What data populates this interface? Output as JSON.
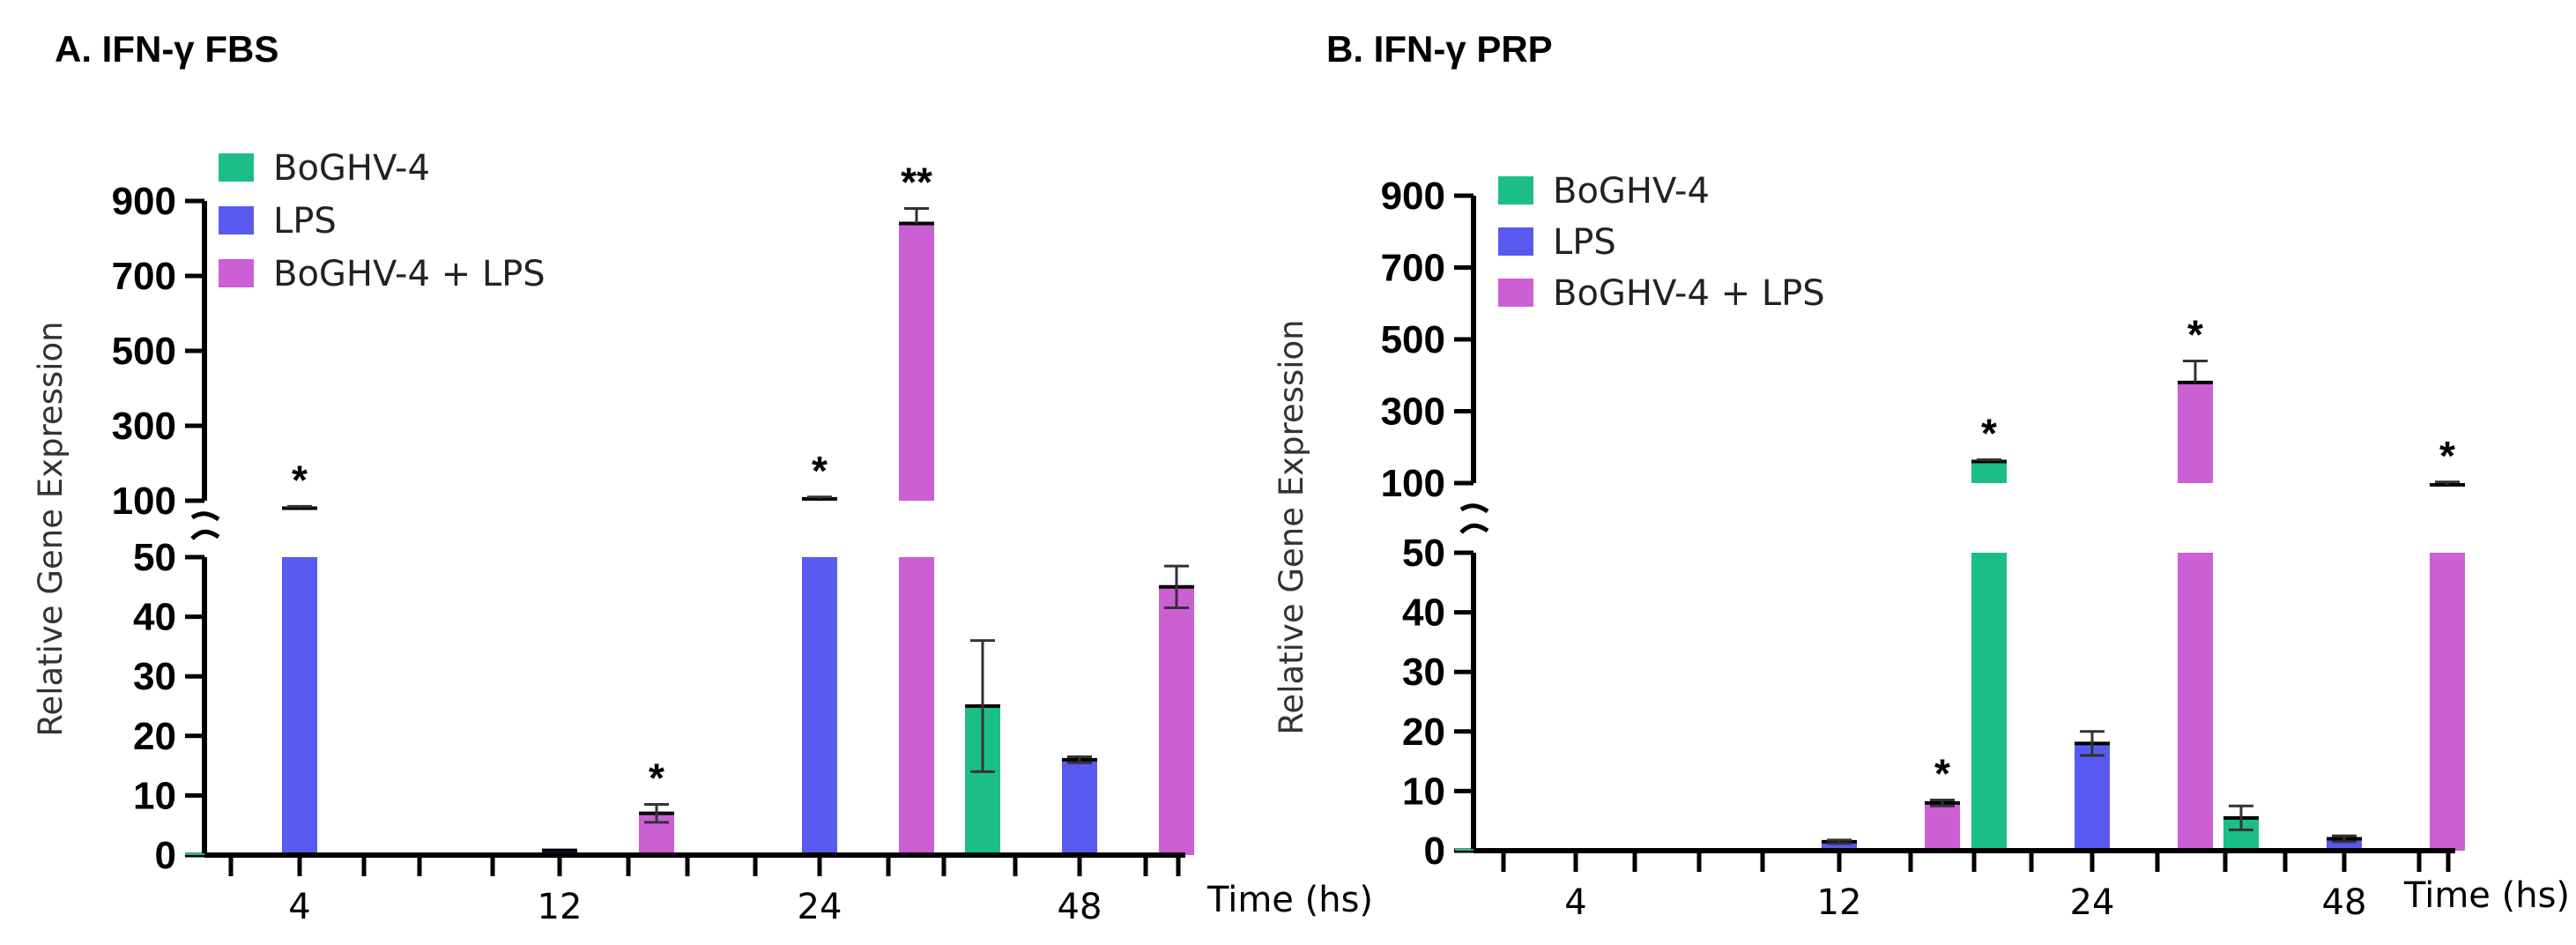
{
  "chart_data": [
    {
      "type": "bar",
      "title": "A. IFN-γ FBS",
      "xlabel": "Time (hs)",
      "ylabel": "Relative Gene Expression",
      "categories": [
        "4",
        "12",
        "24",
        "48"
      ],
      "y_axis": "broken",
      "ylim_lower": [
        0,
        50
      ],
      "ylim_upper": [
        100,
        900
      ],
      "yticks_lower": [
        "0",
        "10",
        "20",
        "30",
        "40",
        "50"
      ],
      "yticks_upper": [
        "100",
        "300",
        "500",
        "700",
        "900"
      ],
      "legend_position": "top-left",
      "series": [
        {
          "name": "BoGHV-4",
          "color": "#1bbf85",
          "values": [
            0,
            0.3,
            0,
            25
          ],
          "errors": [
            0,
            0,
            0,
            11
          ],
          "significance": [
            "",
            "",
            "",
            ""
          ]
        },
        {
          "name": "LPS",
          "color": "#5a5af0",
          "values": [
            80,
            0.8,
            105,
            16
          ],
          "errors": [
            5,
            0,
            5,
            0.5
          ],
          "significance": [
            "*",
            "",
            "*",
            ""
          ]
        },
        {
          "name": "BoGHV-4 + LPS",
          "color": "#cc5fd4",
          "values": [
            0.3,
            7,
            840,
            45
          ],
          "errors": [
            0,
            1.5,
            40,
            3.5
          ],
          "significance": [
            "",
            "*",
            "**",
            ""
          ]
        }
      ]
    },
    {
      "type": "bar",
      "title": "B. IFN-γ PRP",
      "xlabel": "Time (hs)",
      "ylabel": "Relative Gene Expression",
      "categories": [
        "4",
        "12",
        "24",
        "48"
      ],
      "y_axis": "broken",
      "ylim_lower": [
        0,
        50
      ],
      "ylim_upper": [
        100,
        900
      ],
      "yticks_lower": [
        "0",
        "10",
        "20",
        "30",
        "40",
        "50"
      ],
      "yticks_upper": [
        "100",
        "300",
        "500",
        "700",
        "900"
      ],
      "legend_position": "top-left",
      "series": [
        {
          "name": "BoGHV-4",
          "color": "#1bbf85",
          "values": [
            0.2,
            0.3,
            160,
            5.5
          ],
          "errors": [
            0,
            0,
            5,
            2
          ],
          "significance": [
            "",
            "",
            "*",
            ""
          ]
        },
        {
          "name": "LPS",
          "color": "#5a5af0",
          "values": [
            0.2,
            1.5,
            18,
            2
          ],
          "errors": [
            0,
            0.3,
            2,
            0.5
          ],
          "significance": [
            "",
            "",
            "",
            ""
          ]
        },
        {
          "name": "BoGHV-4 + LPS",
          "color": "#cc5fd4",
          "values": [
            0.4,
            8,
            380,
            95
          ],
          "errors": [
            0,
            0.5,
            60,
            8
          ],
          "significance": [
            "",
            "*",
            "*",
            "*"
          ]
        }
      ]
    }
  ]
}
